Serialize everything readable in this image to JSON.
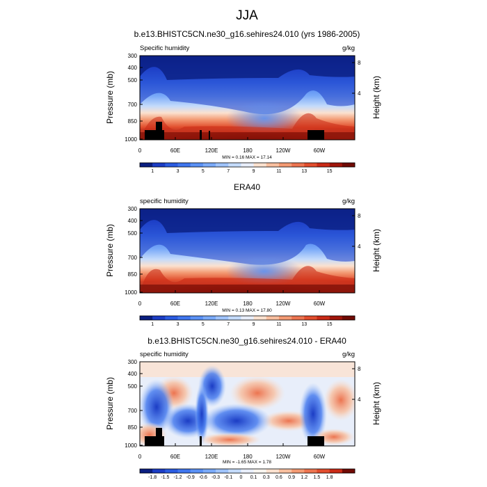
{
  "figure": {
    "season_title": "JJA"
  },
  "colorbar_colors_abs": [
    "#0a1e80",
    "#1b3cc4",
    "#2a5be0",
    "#3f76ee",
    "#5a91f5",
    "#7aaaf8",
    "#9fc3fa",
    "#c4dbfb",
    "#e8eefa",
    "#fbe1cf",
    "#f8bf9f",
    "#f39a73",
    "#ec7450",
    "#e14d2d",
    "#c92a16",
    "#a0150a",
    "#700a04"
  ],
  "colorbar_colors_diff": [
    "#0a1e80",
    "#1b3cc4",
    "#2a5be0",
    "#3f76ee",
    "#5a91f5",
    "#7aaaf8",
    "#9fc3fa",
    "#c4dbfb",
    "#e8eefa",
    "#f7f4ee",
    "#fbe1cf",
    "#f8bf9f",
    "#f39a73",
    "#ec7450",
    "#e14d2d",
    "#c92a16",
    "#700a04"
  ],
  "chart_data": [
    {
      "type": "heatmap",
      "title": "b.e13.BHISTC5CN.ne30_g16.sehires24.010 (yrs 1986-2005)",
      "left_label": "Specific humidity",
      "right_label": "g/kg",
      "xlabel": "",
      "ylabel": "Pressure (mb)",
      "ylabel_right": "Height (km)",
      "x_ticks": [
        "0",
        "60E",
        "120E",
        "180",
        "120W",
        "60W"
      ],
      "y_ticks": [
        "300",
        "400",
        "500",
        "700",
        "850",
        "1000"
      ],
      "y_ticks_right": [
        "8",
        "4"
      ],
      "min_max": "MIN =   0.16  MAX =  17.14",
      "colorbar_labels": [
        "1",
        "3",
        "5",
        "7",
        "9",
        "11",
        "13",
        "15"
      ],
      "colorbar_levels": [
        0.5,
        1,
        2,
        3,
        4,
        5,
        6,
        7,
        8,
        9,
        10,
        11,
        12,
        13,
        14,
        15,
        16
      ],
      "ylim": [
        1000,
        300
      ]
    },
    {
      "type": "heatmap",
      "title": "ERA40",
      "left_label": "specific humidity",
      "right_label": "g/kg",
      "xlabel": "",
      "ylabel": "Pressure (mb)",
      "ylabel_right": "Height (km)",
      "x_ticks": [
        "0",
        "60E",
        "120E",
        "180",
        "120W",
        "60W"
      ],
      "y_ticks": [
        "300",
        "400",
        "500",
        "700",
        "850",
        "1000"
      ],
      "y_ticks_right": [
        "8",
        "4"
      ],
      "min_max": "MIN =   0.13  MAX =  17.80",
      "colorbar_labels": [
        "1",
        "3",
        "5",
        "7",
        "9",
        "11",
        "13",
        "15"
      ],
      "colorbar_levels": [
        0.5,
        1,
        2,
        3,
        4,
        5,
        6,
        7,
        8,
        9,
        10,
        11,
        12,
        13,
        14,
        15,
        16
      ],
      "ylim": [
        1000,
        300
      ]
    },
    {
      "type": "heatmap",
      "title": "b.e13.BHISTC5CN.ne30_g16.sehires24.010 - ERA40",
      "left_label": "specific humidity",
      "right_label": "g/kg",
      "xlabel": "",
      "ylabel": "Pressure (mb)",
      "ylabel_right": "Height (km)",
      "x_ticks": [
        "0",
        "60E",
        "120E",
        "180",
        "120W",
        "60W"
      ],
      "y_ticks": [
        "300",
        "400",
        "500",
        "700",
        "850",
        "1000"
      ],
      "y_ticks_right": [
        "8",
        "4"
      ],
      "min_max": "MIN =  -1.65  MAX =   1.78",
      "colorbar_labels": [
        "-1.8",
        "-1.5",
        "-1.2",
        "-0.9",
        "-0.6",
        "-0.3",
        "-0.1",
        "0",
        "0.1",
        "0.3",
        "0.6",
        "0.9",
        "1.2",
        "1.5",
        "1.8"
      ],
      "colorbar_levels": [
        -1.8,
        -1.5,
        -1.2,
        -0.9,
        -0.6,
        -0.3,
        -0.1,
        0,
        0.1,
        0.3,
        0.6,
        0.9,
        1.2,
        1.5,
        1.8
      ],
      "ylim": [
        1000,
        300
      ]
    }
  ]
}
